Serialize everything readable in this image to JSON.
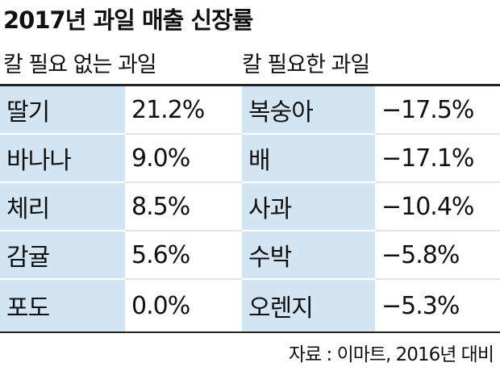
{
  "header": {
    "title": "2017년 과일 매출 신장률"
  },
  "table": {
    "groups": [
      "칼 필요 없는 과일",
      "칼 필요한 과일"
    ],
    "rows": [
      [
        "딸기",
        "21.2%",
        "복숭아",
        "−17.5%"
      ],
      [
        "바나나",
        "9.0%",
        "배",
        "−17.1%"
      ],
      [
        "체리",
        "8.5%",
        "사과",
        "−10.4%"
      ],
      [
        "감귤",
        "5.6%",
        "수박",
        "−5.8%"
      ],
      [
        "포도",
        "0.0%",
        "오렌지",
        "−5.3%"
      ]
    ]
  },
  "footer": {
    "source": "자료 : 이마트, 2016년 대비"
  }
}
